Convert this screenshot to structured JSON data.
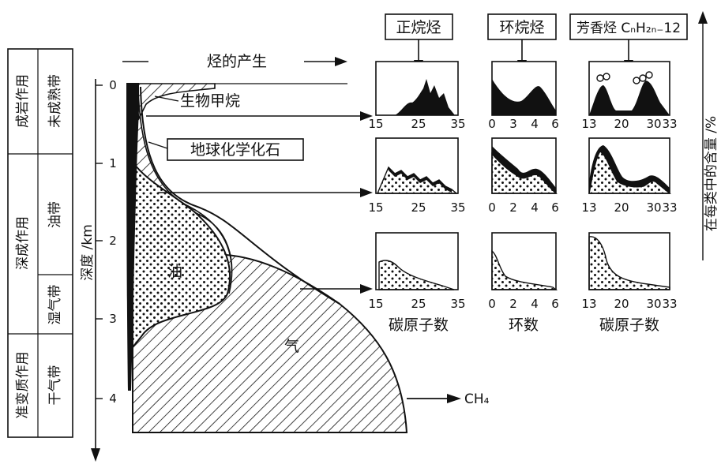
{
  "stages": [
    {
      "name": "成岩作用",
      "zone": "未成熟带"
    },
    {
      "name": "深成作用",
      "zone": "油带"
    },
    {
      "zone": "湿气带"
    },
    {
      "name": "准变质作用",
      "zone": "干气带"
    }
  ],
  "axis": {
    "depth_label": "深度 /km",
    "ticks": [
      "0",
      "1",
      "2",
      "3",
      "4"
    ]
  },
  "top_label": "烃的产生",
  "labels": {
    "biomethane": "生物甲烷",
    "geochem_fossil": "地球化学化石",
    "oil": "油",
    "gas": "气",
    "ch4": "CH₄",
    "right_axis": "在每类中的含量 /%"
  },
  "columns": [
    {
      "title": "正烷烃",
      "xlabel": "碳原子数",
      "ticks": [
        "15",
        "25",
        "35"
      ]
    },
    {
      "title": "环烷烃",
      "xlabel": "环数",
      "ticks": [
        "0",
        "2",
        "4",
        "6"
      ]
    },
    {
      "title": "芳香烃 CₙH₂ₙ₋12",
      "xlabel": "碳原子数",
      "ticks": [
        "13",
        "20",
        "30",
        "33"
      ]
    }
  ],
  "mini_ticks_row1_col2": [
    "0",
    "3",
    "4",
    "6"
  ],
  "mini_ticks_row2_col2": [
    "0",
    "2",
    "4",
    "6"
  ],
  "mini_ticks_row2_col3": [
    "13",
    "20",
    "30",
    "33"
  ]
}
